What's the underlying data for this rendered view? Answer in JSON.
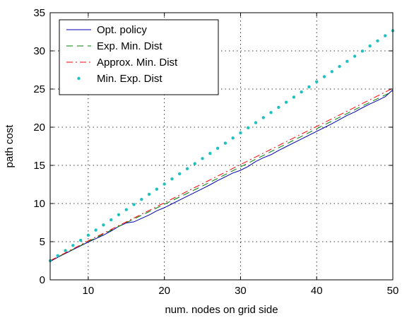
{
  "chart_data": {
    "type": "line",
    "xlabel": "num. nodes on grid side",
    "ylabel": "path cost",
    "xlim": [
      5,
      50
    ],
    "ylim": [
      0,
      35
    ],
    "xticks": [
      10,
      20,
      30,
      40,
      50
    ],
    "yticks": [
      0,
      5,
      10,
      15,
      20,
      25,
      30,
      35
    ],
    "grid": true,
    "legend_position": "top-left",
    "series": [
      {
        "name": "Opt. policy",
        "color": "#0000b0",
        "style": "solid",
        "x": [
          5,
          6,
          7,
          8,
          9,
          10,
          11,
          12,
          13,
          14,
          15,
          16,
          17,
          18,
          19,
          20,
          21,
          22,
          23,
          24,
          25,
          26,
          27,
          28,
          29,
          30,
          31,
          32,
          33,
          34,
          35,
          36,
          37,
          38,
          39,
          40,
          41,
          42,
          43,
          44,
          45,
          46,
          47,
          48,
          49,
          50
        ],
        "values": [
          2.4,
          2.95,
          3.45,
          3.95,
          4.45,
          4.95,
          5.4,
          5.85,
          6.4,
          7.0,
          7.45,
          7.6,
          8.05,
          8.5,
          9.05,
          9.45,
          9.95,
          10.45,
          10.95,
          11.45,
          11.95,
          12.45,
          13.0,
          13.5,
          14.0,
          14.35,
          14.85,
          15.5,
          16.0,
          16.4,
          16.95,
          17.45,
          17.95,
          18.45,
          18.95,
          19.45,
          19.95,
          20.45,
          21.0,
          21.55,
          22.0,
          22.55,
          23.05,
          23.5,
          24.0,
          24.9
        ]
      },
      {
        "name": "Exp. Min. Dist",
        "color": "#008000",
        "style": "dashed",
        "x": [
          5,
          10,
          15,
          20,
          25,
          30,
          35,
          40,
          45,
          50
        ],
        "values": [
          2.5,
          5.0,
          7.5,
          9.9,
          12.3,
          14.8,
          17.3,
          19.8,
          22.3,
          24.7
        ]
      },
      {
        "name": "Approx. Min. Dist",
        "color": "#ff0000",
        "style": "dashdot",
        "x": [
          5,
          10,
          15,
          20,
          25,
          30,
          35,
          40,
          45,
          50
        ],
        "values": [
          2.5,
          5.1,
          7.6,
          10.1,
          12.6,
          15.1,
          17.6,
          20.1,
          22.6,
          25.1
        ]
      },
      {
        "name": "Min. Exp. Dist",
        "color": "#20c0c0",
        "style": "dotted",
        "x": [
          5,
          6,
          7,
          8,
          9,
          10,
          11,
          12,
          13,
          14,
          15,
          16,
          17,
          18,
          19,
          20,
          21,
          22,
          23,
          24,
          25,
          26,
          27,
          28,
          29,
          30,
          31,
          32,
          33,
          34,
          35,
          36,
          37,
          38,
          39,
          40,
          41,
          42,
          43,
          44,
          45,
          46,
          47,
          48,
          49,
          50
        ],
        "values": [
          2.5,
          3.17,
          3.84,
          4.51,
          5.18,
          5.85,
          6.52,
          7.19,
          7.86,
          8.53,
          9.2,
          9.87,
          10.54,
          11.21,
          11.88,
          12.55,
          13.22,
          13.89,
          14.56,
          15.23,
          15.9,
          16.57,
          17.24,
          17.91,
          18.58,
          19.25,
          19.92,
          20.59,
          21.26,
          21.93,
          22.6,
          23.27,
          23.94,
          24.61,
          25.28,
          25.95,
          26.62,
          27.29,
          27.96,
          28.63,
          29.3,
          29.97,
          30.64,
          31.31,
          31.98,
          32.65
        ]
      }
    ]
  }
}
